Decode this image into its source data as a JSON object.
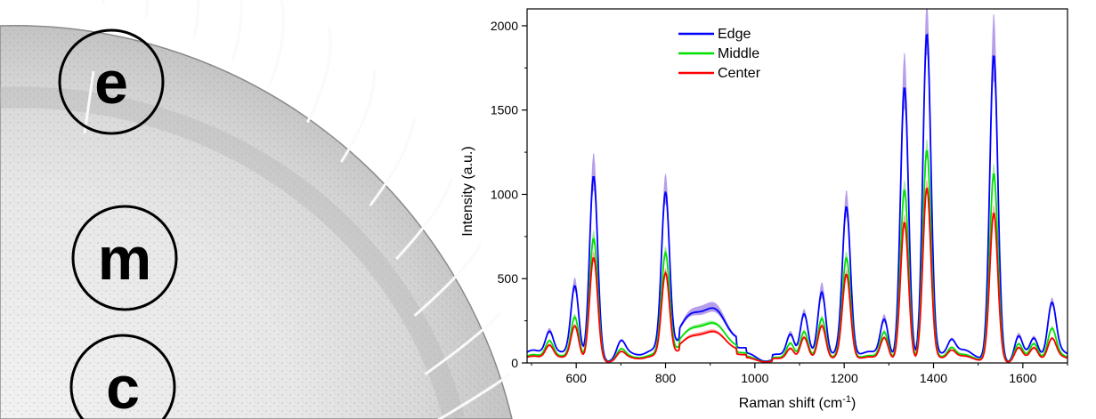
{
  "panel_left": {
    "markers": [
      {
        "id": "edge",
        "label": "e"
      },
      {
        "id": "middle",
        "label": "m"
      },
      {
        "id": "center",
        "label": "c"
      }
    ]
  },
  "chart_data": {
    "type": "line",
    "title": "",
    "xlabel_main": "Raman shift (cm",
    "xlabel_sup": "-1",
    "xlabel_tail": ")",
    "ylabel": "Intensity (a.u.)",
    "xlim": [
      490,
      1700
    ],
    "ylim": [
      0,
      2100
    ],
    "xticks": [
      600,
      800,
      1000,
      1200,
      1400,
      1600
    ],
    "yticks": [
      0,
      500,
      1000,
      1500,
      2000
    ],
    "legend_position": "top-left",
    "grid": false,
    "peaks_x": [
      540,
      597,
      639,
      700,
      800,
      860,
      910,
      1080,
      1110,
      1150,
      1205,
      1290,
      1335,
      1385,
      1440,
      1535,
      1590,
      1625,
      1665
    ],
    "series": [
      {
        "name": "Edge",
        "color": "#0000ff",
        "band_color": "#a98ee6",
        "peak_heights": [
          140,
          440,
          1080,
          80,
          950,
          170,
          180,
          160,
          270,
          400,
          860,
          240,
          1610,
          1920,
          90,
          1790,
          140,
          110,
          290
        ],
        "band_extra": [
          20,
          50,
          140,
          10,
          110,
          20,
          30,
          20,
          30,
          60,
          100,
          30,
          210,
          200,
          10,
          250,
          20,
          15,
          30
        ]
      },
      {
        "name": "Middle",
        "color": "#00e000",
        "band_color": "#8de88d",
        "peak_heights": [
          100,
          260,
          720,
          50,
          610,
          120,
          140,
          110,
          170,
          250,
          580,
          170,
          1010,
          1240,
          60,
          1100,
          100,
          90,
          160
        ],
        "band_extra": [
          10,
          20,
          50,
          5,
          40,
          10,
          10,
          10,
          15,
          20,
          40,
          15,
          60,
          70,
          5,
          60,
          10,
          10,
          15
        ]
      },
      {
        "name": "Center",
        "color": "#ff0000",
        "band_color": "#ff9c9c",
        "peak_heights": [
          80,
          210,
          610,
          40,
          500,
          90,
          110,
          80,
          140,
          210,
          490,
          140,
          820,
          1020,
          50,
          870,
          80,
          70,
          110
        ],
        "band_extra": [
          10,
          15,
          40,
          5,
          30,
          10,
          10,
          10,
          10,
          15,
          30,
          10,
          50,
          50,
          5,
          50,
          10,
          10,
          10
        ]
      }
    ]
  }
}
